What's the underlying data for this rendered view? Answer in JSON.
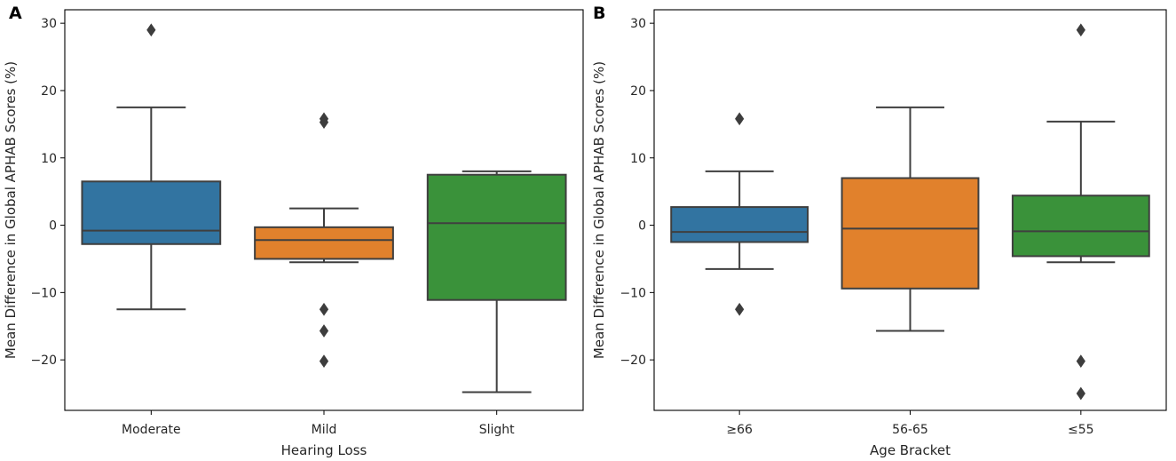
{
  "chart_data": [
    {
      "type": "box",
      "panel_label": "A",
      "xlabel": "Hearing Loss",
      "ylabel": "Mean Difference in Global APHAB Scores (%)",
      "ylim": [
        -27.5,
        32
      ],
      "yticks": [
        -20,
        -10,
        0,
        10,
        20,
        30
      ],
      "ytick_labels": [
        "−20",
        "−10",
        "0",
        "10",
        "20",
        "30"
      ],
      "categories": [
        "Moderate",
        "Mild",
        "Slight"
      ],
      "boxes": [
        {
          "name": "Moderate",
          "color": "#3274a1",
          "whisker_low": -12.5,
          "q1": -2.8,
          "median": -0.8,
          "q3": 6.5,
          "whisker_high": 17.5,
          "outliers": [
            29
          ]
        },
        {
          "name": "Mild",
          "color": "#e1812c",
          "whisker_low": -5.5,
          "q1": -5.0,
          "median": -2.2,
          "q3": -0.3,
          "whisker_high": 2.5,
          "outliers": [
            15.8,
            15.3,
            -12.5,
            -15.7,
            -20.2
          ]
        },
        {
          "name": "Slight",
          "color": "#3a923a",
          "whisker_low": -24.8,
          "q1": -11.1,
          "median": 0.3,
          "q3": 7.5,
          "whisker_high": 8.0,
          "outliers": []
        }
      ]
    },
    {
      "type": "box",
      "panel_label": "B",
      "xlabel": "Age Bracket",
      "ylabel": "Mean Difference in Global APHAB Scores (%)",
      "ylim": [
        -27.5,
        32
      ],
      "yticks": [
        -20,
        -10,
        0,
        10,
        20,
        30
      ],
      "ytick_labels": [
        "−20",
        "−10",
        "0",
        "10",
        "20",
        "30"
      ],
      "categories": [
        "≥66",
        "56-65",
        "≤55"
      ],
      "boxes": [
        {
          "name": "≥66",
          "color": "#3274a1",
          "whisker_low": -6.5,
          "q1": -2.5,
          "median": -1.0,
          "q3": 2.7,
          "whisker_high": 8.0,
          "outliers": [
            15.8,
            -12.5
          ]
        },
        {
          "name": "56-65",
          "color": "#e1812c",
          "whisker_low": -15.7,
          "q1": -9.4,
          "median": -0.5,
          "q3": 7.0,
          "whisker_high": 17.5,
          "outliers": []
        },
        {
          "name": "≤55",
          "color": "#3a923a",
          "whisker_low": -5.5,
          "q1": -4.6,
          "median": -0.9,
          "q3": 4.4,
          "whisker_high": 15.4,
          "outliers": [
            29,
            -20.2,
            -25.0
          ]
        }
      ]
    }
  ]
}
